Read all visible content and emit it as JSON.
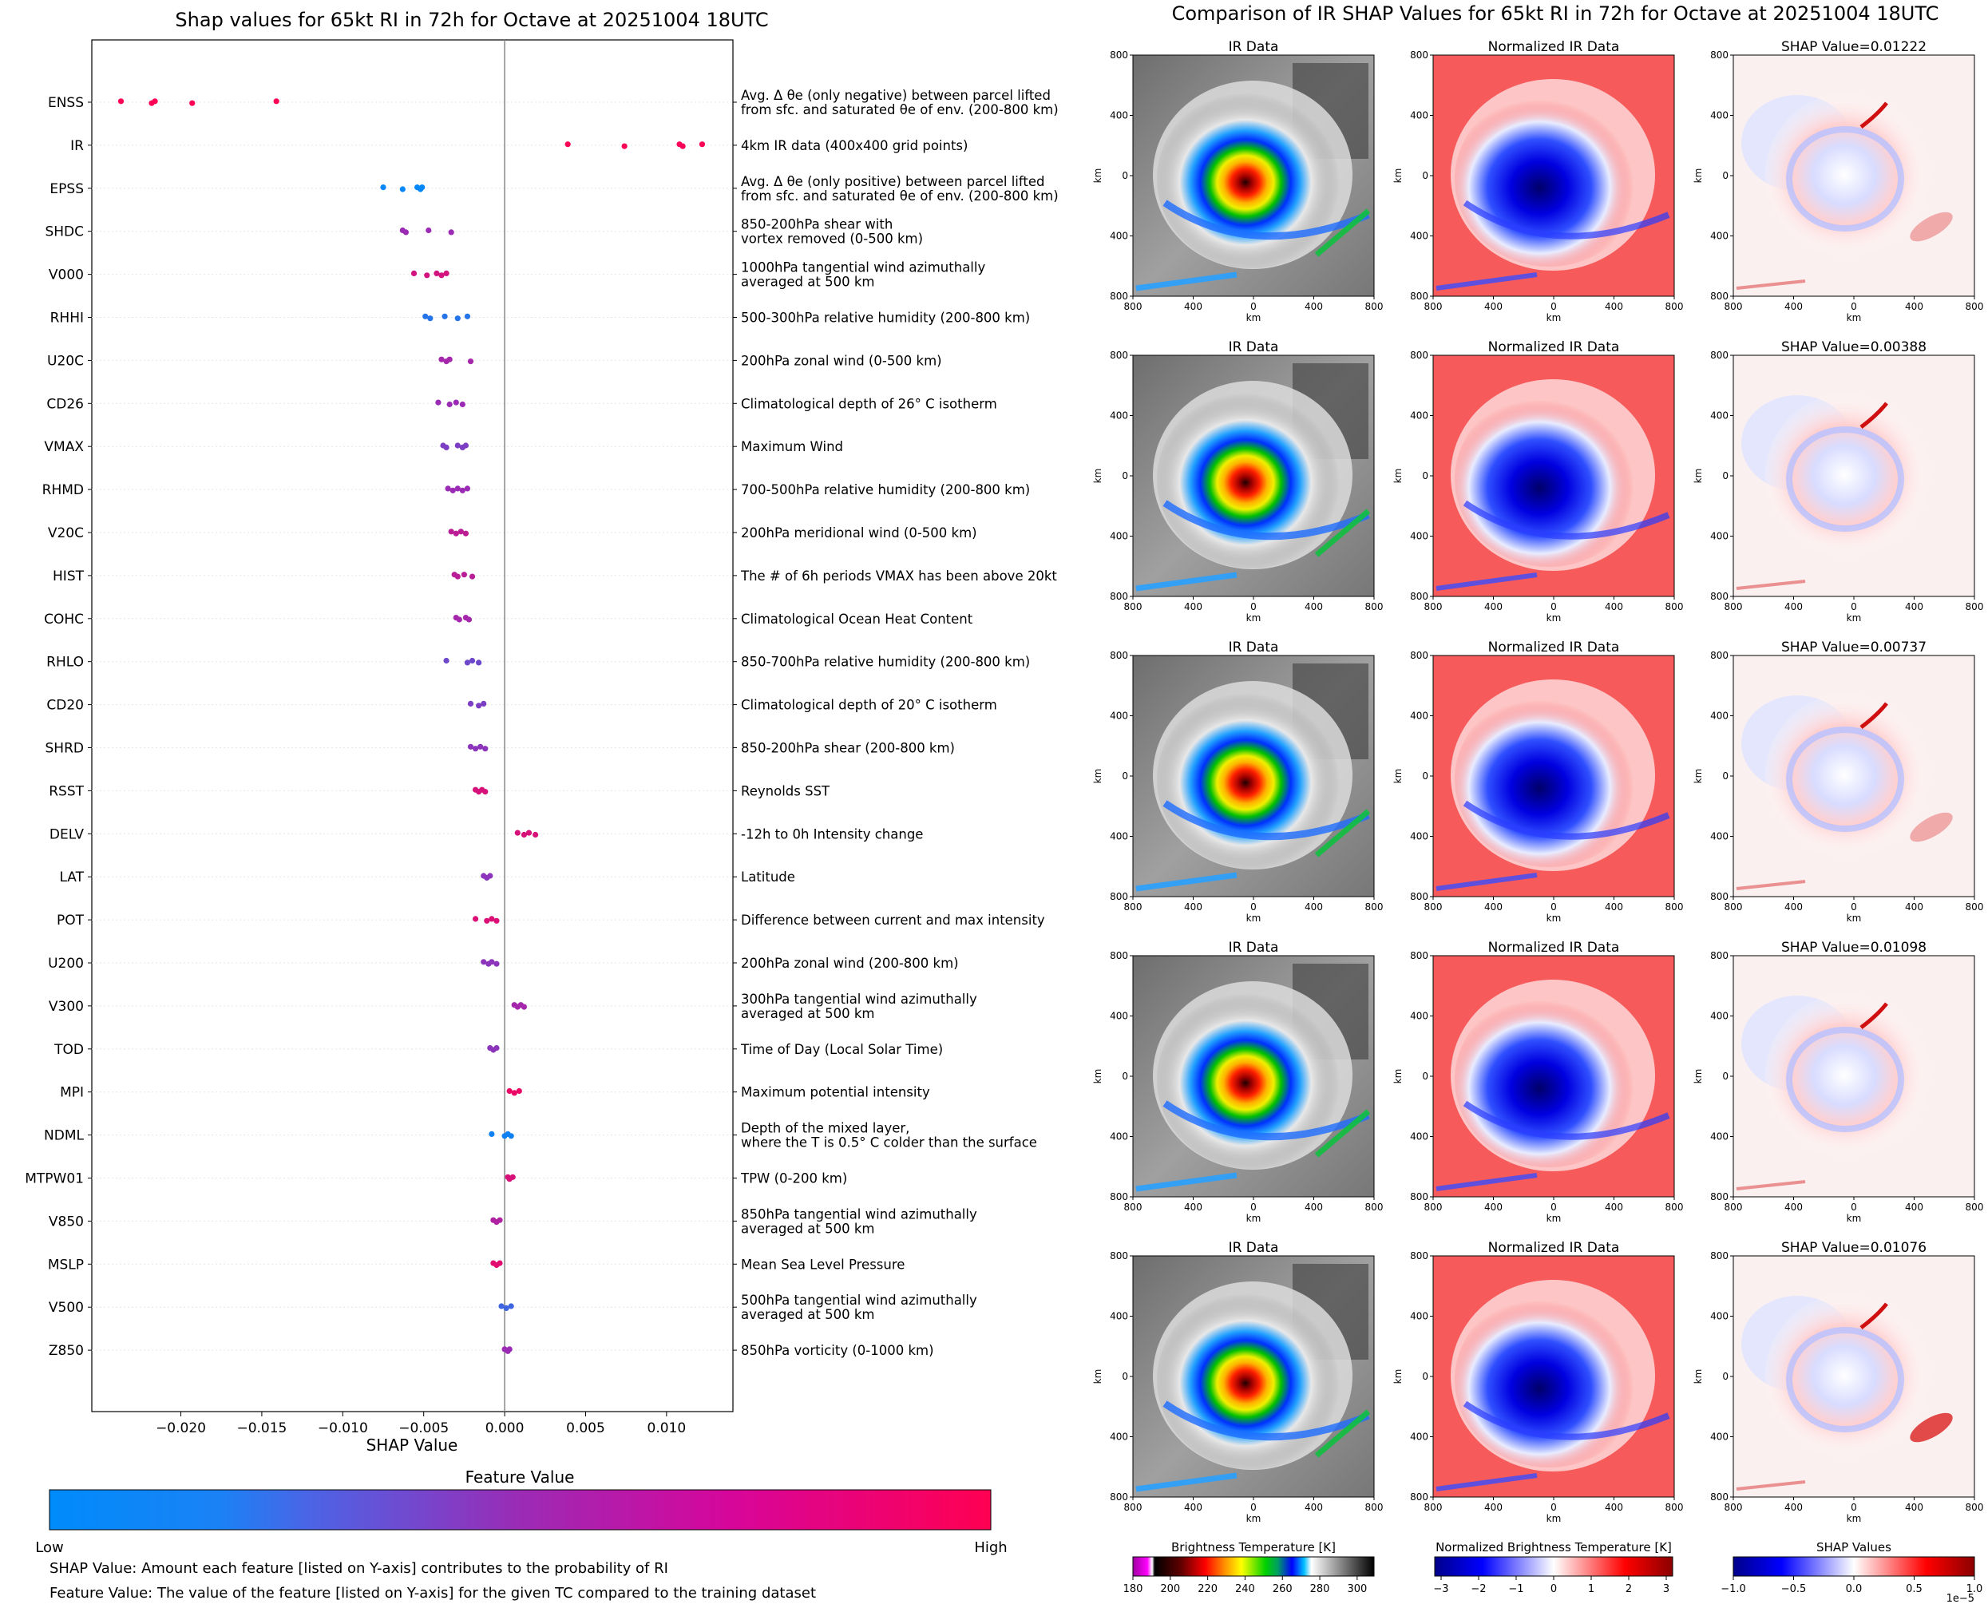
{
  "left": {
    "title": "Shap values for 65kt RI in 72h for Octave at 20251004 18UTC",
    "xlabel": "SHAP Value",
    "colorbar_title": "Feature Value",
    "colorbar_low": "Low",
    "colorbar_high": "High",
    "note1": "SHAP Value: Amount each feature [listed on Y-axis] contributes to the probability of RI",
    "note2": "Feature Value: The value of the feature [listed on Y-axis] for the given TC compared to the training dataset"
  },
  "right": {
    "title": "Comparison of IR SHAP Values for 65kt RI in 72h for Octave at 20251004 18UTC",
    "col1_title": "IR Data",
    "col2_title": "Normalized IR Data",
    "shap_prefix": "SHAP Value=",
    "shap_values": [
      "0.01222",
      "0.00388",
      "0.00737",
      "0.01098",
      "0.01076"
    ],
    "axis_label": "km",
    "ticks": [
      "800",
      "400",
      "0",
      "400",
      "800"
    ],
    "cb1": {
      "title": "Brightness Temperature [K]",
      "ticks": [
        "180",
        "200",
        "220",
        "240",
        "260",
        "280",
        "300"
      ]
    },
    "cb2": {
      "title": "Normalized Brightness Temperature [K]",
      "ticks": [
        "−3",
        "−2",
        "−1",
        "0",
        "1",
        "2",
        "3"
      ]
    },
    "cb3": {
      "title": "SHAP Values",
      "ticks": [
        "−1.0",
        "−0.5",
        "0.0",
        "0.5",
        "1.0"
      ],
      "exp": "1e−5"
    }
  },
  "colors": {
    "low": "#008bfb",
    "mid": "#9b2bb5",
    "high": "#ff0052"
  },
  "chart_data": {
    "type": "scatter",
    "title": "Shap values for 65kt RI in 72h for Octave at 20251004 18UTC",
    "xlabel": "SHAP Value",
    "xlim": [
      -0.0255,
      0.0141
    ],
    "xticks": [
      -0.02,
      -0.015,
      -0.01,
      -0.005,
      0.0,
      0.005,
      0.01
    ],
    "xtick_labels": [
      "−0.020",
      "−0.015",
      "−0.010",
      "−0.005",
      "0.000",
      "0.005",
      "0.010"
    ],
    "features": [
      {
        "name": "ENSS",
        "desc": [
          "Avg. Δ θe (only negative) between parcel lifted",
          "from sfc. and saturated θe of env. (200-800 km)"
        ],
        "points": [
          -0.0237,
          -0.0218,
          -0.0216,
          -0.0193,
          -0.0141
        ],
        "fv": 0.98
      },
      {
        "name": "IR",
        "desc": [
          "4km IR data (400x400 grid points)"
        ],
        "points": [
          0.0039,
          0.0074,
          0.0108,
          0.011,
          0.0122
        ],
        "fv": 0.97
      },
      {
        "name": "EPSS",
        "desc": [
          "Avg. Δ θe (only positive) between parcel lifted",
          "from sfc. and saturated θe of env. (200-800 km)"
        ],
        "points": [
          -0.0075,
          -0.0063,
          -0.0054,
          -0.0052,
          -0.0051
        ],
        "fv": 0.02
      },
      {
        "name": "SHDC",
        "desc": [
          "850-200hPa shear with",
          "vortex removed (0-500 km)"
        ],
        "points": [
          -0.0063,
          -0.0061,
          -0.0047,
          -0.0033
        ],
        "fv": 0.5
      },
      {
        "name": "V000",
        "desc": [
          "1000hPa tangential wind azimuthally",
          "averaged at 500 km"
        ],
        "points": [
          -0.0056,
          -0.0048,
          -0.0042,
          -0.0039,
          -0.0036
        ],
        "fv": 0.78
      },
      {
        "name": "RHHI",
        "desc": [
          "500-300hPa relative humidity (200-800 km)"
        ],
        "points": [
          -0.0049,
          -0.0046,
          -0.0037,
          -0.0029,
          -0.0023
        ],
        "fv": 0.12
      },
      {
        "name": "U20C",
        "desc": [
          "200hPa zonal wind (0-500 km)"
        ],
        "points": [
          -0.0039,
          -0.0036,
          -0.0034,
          -0.0021
        ],
        "fv": 0.55
      },
      {
        "name": "CD26",
        "desc": [
          "Climatological depth of 26° C isotherm"
        ],
        "points": [
          -0.0041,
          -0.0034,
          -0.003,
          -0.0026
        ],
        "fv": 0.5
      },
      {
        "name": "VMAX",
        "desc": [
          "Maximum Wind"
        ],
        "points": [
          -0.0038,
          -0.0036,
          -0.0029,
          -0.0026,
          -0.0024
        ],
        "fv": 0.4
      },
      {
        "name": "RHMD",
        "desc": [
          "700-500hPa relative humidity (200-800 km)"
        ],
        "points": [
          -0.0035,
          -0.0032,
          -0.0029,
          -0.0026,
          -0.0023
        ],
        "fv": 0.5
      },
      {
        "name": "V20C",
        "desc": [
          "200hPa meridional wind (0-500 km)"
        ],
        "points": [
          -0.0033,
          -0.003,
          -0.0027,
          -0.0024
        ],
        "fv": 0.66
      },
      {
        "name": "HIST",
        "desc": [
          "The # of 6h periods VMAX has been above 20kt"
        ],
        "points": [
          -0.0031,
          -0.0029,
          -0.0025,
          -0.002
        ],
        "fv": 0.65
      },
      {
        "name": "COHC",
        "desc": [
          "Climatological Ocean Heat Content"
        ],
        "points": [
          -0.003,
          -0.0028,
          -0.0024,
          -0.0022
        ],
        "fv": 0.55
      },
      {
        "name": "RHLO",
        "desc": [
          "850-700hPa relative humidity (200-800 km)"
        ],
        "points": [
          -0.0036,
          -0.0023,
          -0.002,
          -0.0016
        ],
        "fv": 0.35
      },
      {
        "name": "CD20",
        "desc": [
          "Climatological depth of 20° C isotherm"
        ],
        "points": [
          -0.0021,
          -0.0016,
          -0.0013
        ],
        "fv": 0.4
      },
      {
        "name": "SHRD",
        "desc": [
          "850-200hPa shear (200-800 km)"
        ],
        "points": [
          -0.0021,
          -0.0018,
          -0.0015,
          -0.0012
        ],
        "fv": 0.45
      },
      {
        "name": "RSST",
        "desc": [
          "Reynolds SST"
        ],
        "points": [
          -0.0018,
          -0.0016,
          -0.0014,
          -0.0012
        ],
        "fv": 0.8
      },
      {
        "name": "DELV",
        "desc": [
          "-12h to 0h Intensity change"
        ],
        "points": [
          0.0008,
          0.0012,
          0.0015,
          0.0019
        ],
        "fv": 0.8
      },
      {
        "name": "LAT",
        "desc": [
          "Latitude"
        ],
        "points": [
          -0.0013,
          -0.0011,
          -0.0009
        ],
        "fv": 0.45
      },
      {
        "name": "POT",
        "desc": [
          "Difference between current and max intensity"
        ],
        "points": [
          -0.0018,
          -0.0011,
          -0.0008,
          -0.0005
        ],
        "fv": 0.82
      },
      {
        "name": "U200",
        "desc": [
          "200hPa zonal wind (200-800 km)"
        ],
        "points": [
          -0.0013,
          -0.001,
          -0.0008,
          -0.0005
        ],
        "fv": 0.45
      },
      {
        "name": "V300",
        "desc": [
          "300hPa tangential wind azimuthally",
          "averaged at 500 km"
        ],
        "points": [
          0.0006,
          0.0008,
          0.001,
          0.0012
        ],
        "fv": 0.55
      },
      {
        "name": "TOD",
        "desc": [
          "Time of Day (Local Solar Time)"
        ],
        "points": [
          -0.0009,
          -0.0007,
          -0.0005
        ],
        "fv": 0.45
      },
      {
        "name": "MPI",
        "desc": [
          "Maximum potential intensity"
        ],
        "points": [
          0.0003,
          0.0006,
          0.0009
        ],
        "fv": 0.9
      },
      {
        "name": "NDML",
        "desc": [
          "Depth of the mixed layer,",
          "where the T is 0.5° C colder than the surface"
        ],
        "points": [
          -0.0008,
          0.0,
          0.0002,
          0.0004
        ],
        "fv": 0.05
      },
      {
        "name": "MTPW01",
        "desc": [
          "TPW (0-200 km)"
        ],
        "points": [
          0.0002,
          0.0003,
          0.0005
        ],
        "fv": 0.8
      },
      {
        "name": "V850",
        "desc": [
          "850hPa tangential wind azimuthally",
          "averaged at 500 km"
        ],
        "points": [
          -0.0007,
          -0.0005,
          -0.0003
        ],
        "fv": 0.6
      },
      {
        "name": "MSLP",
        "desc": [
          "Mean Sea Level Pressure"
        ],
        "points": [
          -0.0007,
          -0.0005,
          -0.0003
        ],
        "fv": 0.85
      },
      {
        "name": "V500",
        "desc": [
          "500hPa tangential wind azimuthally",
          "averaged at 500 km"
        ],
        "points": [
          -0.0002,
          0.0001,
          0.0004
        ],
        "fv": 0.2
      },
      {
        "name": "Z850",
        "desc": [
          "850hPa vorticity (0-1000 km)"
        ],
        "points": [
          0.0,
          0.0002,
          0.0003
        ],
        "fv": 0.5
      }
    ]
  }
}
